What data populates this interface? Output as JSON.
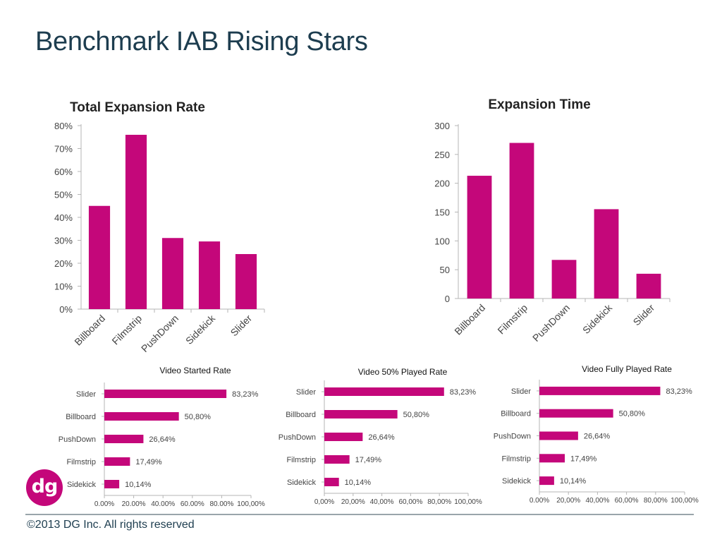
{
  "page": {
    "title": "Benchmark IAB Rising Stars",
    "footer": "©2013 DG Inc. All rights reserved",
    "logo_text": "dg"
  },
  "colors": {
    "bar": "#c4077a",
    "title": "#1d3d4f",
    "footer_line": "#9aa5ab",
    "axis": "#b5b5b5"
  },
  "chart_data": [
    {
      "id": "total-expansion-rate",
      "type": "bar",
      "title": "Total Expansion Rate",
      "categories": [
        "Billboard",
        "Filmstrip",
        "PushDown",
        "Sidekick",
        "Slider"
      ],
      "values": [
        45,
        76,
        31,
        29.5,
        24
      ],
      "ylim": [
        0,
        80
      ],
      "yticks": [
        "0%",
        "10%",
        "20%",
        "30%",
        "40%",
        "50%",
        "60%",
        "70%",
        "80%"
      ],
      "grid": false,
      "legend": "none"
    },
    {
      "id": "expansion-time",
      "type": "bar",
      "title": "Expansion Time",
      "categories": [
        "Billboard",
        "Filmstrip",
        "PushDown",
        "Sidekick",
        "Slider"
      ],
      "values": [
        213,
        270,
        67,
        155,
        43
      ],
      "ylim": [
        0,
        300
      ],
      "yticks": [
        "0",
        "50",
        "100",
        "150",
        "200",
        "250",
        "300"
      ],
      "grid": false,
      "legend": "none"
    },
    {
      "id": "video-started-rate",
      "type": "bar",
      "orientation": "horizontal",
      "title": "Video Started Rate",
      "categories": [
        "Slider",
        "Billboard",
        "PushDown",
        "Filmstrip",
        "Sidekick"
      ],
      "values": [
        83.23,
        50.8,
        26.64,
        17.49,
        10.14
      ],
      "labels": [
        "83,23%",
        "50,80%",
        "26,64%",
        "17,49%",
        "10,14%"
      ],
      "xlim": [
        0,
        100
      ],
      "xticks": [
        "0.00%",
        "20.00%",
        "40.00%",
        "60.00%",
        "80.00%",
        "100,00%"
      ],
      "grid": false,
      "legend": "none"
    },
    {
      "id": "video-50-played-rate",
      "type": "bar",
      "orientation": "horizontal",
      "title": "Video 50% Played Rate",
      "categories": [
        "Slider",
        "Billboard",
        "PushDown",
        "Filmstrip",
        "Sidekick"
      ],
      "values": [
        83.23,
        50.8,
        26.64,
        17.49,
        10.14
      ],
      "labels": [
        "83,23%",
        "50,80%",
        "26,64%",
        "17,49%",
        "10,14%"
      ],
      "xlim": [
        0,
        100
      ],
      "xticks": [
        "0,00%",
        "20,00%",
        "40,00%",
        "60,00%",
        "80,00%",
        "100,00%"
      ],
      "grid": false,
      "legend": "none"
    },
    {
      "id": "video-fully-played-rate",
      "type": "bar",
      "orientation": "horizontal",
      "title": "Video Fully Played Rate",
      "categories": [
        "Slider",
        "Billboard",
        "PushDown",
        "Filmstrip",
        "Sidekick"
      ],
      "values": [
        83.23,
        50.8,
        26.64,
        17.49,
        10.14
      ],
      "labels": [
        "83,23%",
        "50,80%",
        "26,64%",
        "17,49%",
        "10,14%"
      ],
      "xlim": [
        0,
        100
      ],
      "xticks": [
        "0.00%",
        "20,00%",
        "40,00%",
        "60,00%",
        "80,00%",
        "100,00%"
      ],
      "grid": false,
      "legend": "none"
    }
  ]
}
